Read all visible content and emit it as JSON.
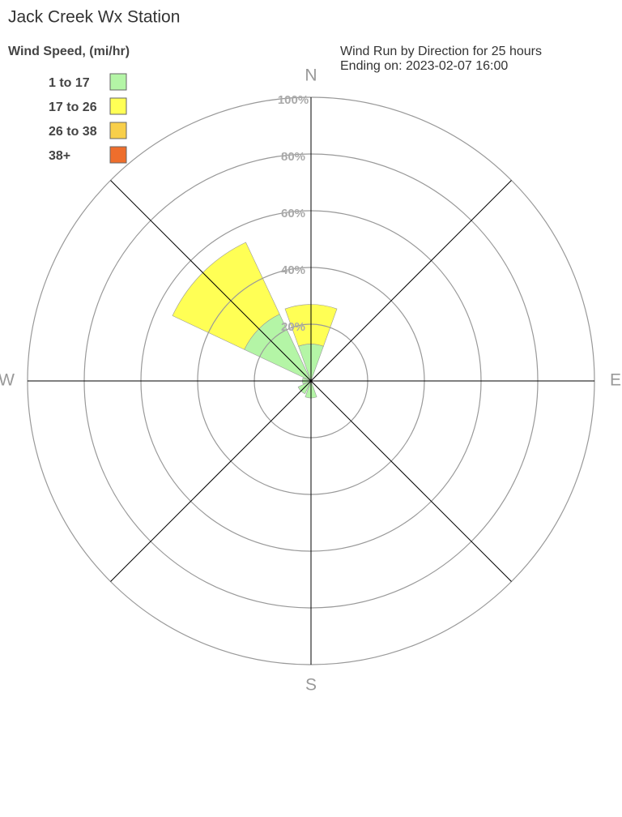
{
  "chart_data": {
    "type": "windrose",
    "title": "Jack Creek Wx Station",
    "subtitle": [
      "Wind Run by Direction for 25 hours",
      "Ending on: 2023-02-07 16:00"
    ],
    "legend_title": "Wind Speed, (mi/hr)",
    "categories": [
      "N",
      null,
      "E",
      null,
      "S",
      null,
      "W",
      null
    ],
    "series": [
      {
        "name": "1 to 17",
        "color": "#b4f5a6",
        "values": [
          13,
          0,
          0,
          0,
          6,
          5,
          3,
          26
        ]
      },
      {
        "name": "17 to 26",
        "color": "#ffff55",
        "values": [
          14,
          0,
          0,
          0,
          0,
          0,
          0,
          28
        ]
      },
      {
        "name": "26 to 38",
        "color": "#f8cf4a",
        "values": [
          0,
          0,
          0,
          0,
          0,
          0,
          0,
          0
        ]
      },
      {
        "name": "38+",
        "color": "#ee6e2c",
        "values": [
          0,
          0,
          0,
          0,
          0,
          0,
          0,
          0
        ]
      }
    ],
    "rlim": [
      0,
      100
    ],
    "rticks": [
      {
        "value": 20,
        "label": "20%"
      },
      {
        "value": 40,
        "label": "40%"
      },
      {
        "value": 60,
        "label": "60%"
      },
      {
        "value": 80,
        "label": "80%"
      },
      {
        "value": 100,
        "label": "100%"
      }
    ]
  }
}
